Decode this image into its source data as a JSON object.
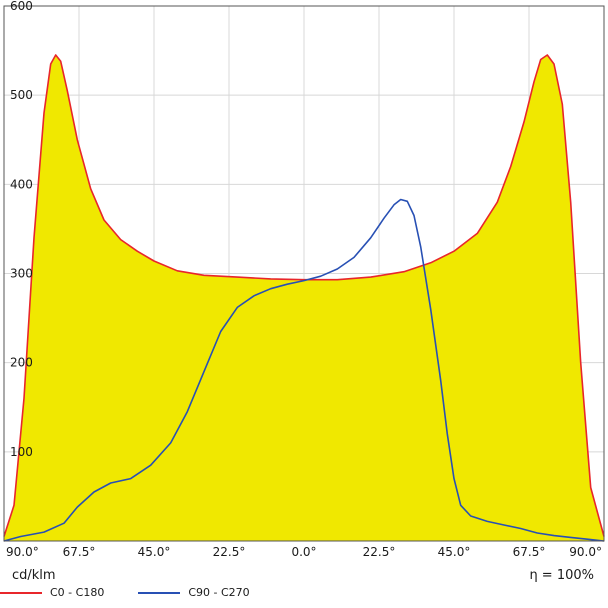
{
  "chart_data": {
    "type": "area",
    "x_tick_labels": [
      "90.0°",
      "67.5°",
      "45.0°",
      "22.5°",
      "0.0°",
      "22.5°",
      "45.0°",
      "67.5°",
      "90.0°"
    ],
    "x": [
      -90,
      -67.5,
      -45,
      -22.5,
      0,
      22.5,
      45,
      67.5,
      90
    ],
    "xlim": [
      -90,
      90
    ],
    "ylim": [
      0,
      600
    ],
    "y_ticks": [
      100,
      200,
      300,
      400,
      500,
      600
    ],
    "grid": true,
    "unit_label": "cd/klm",
    "efficiency_label": "η = 100%",
    "fill_color": "#f0e800",
    "series": [
      {
        "name": "C0 - C180",
        "color": "#e8262b",
        "filled": true,
        "points": [
          [
            -90,
            5
          ],
          [
            -87,
            40
          ],
          [
            -84,
            160
          ],
          [
            -81,
            340
          ],
          [
            -78,
            480
          ],
          [
            -76,
            535
          ],
          [
            -74.5,
            545
          ],
          [
            -73,
            538
          ],
          [
            -71,
            505
          ],
          [
            -68,
            450
          ],
          [
            -64,
            395
          ],
          [
            -60,
            360
          ],
          [
            -55,
            338
          ],
          [
            -50,
            325
          ],
          [
            -45,
            314
          ],
          [
            -38,
            303
          ],
          [
            -30,
            298
          ],
          [
            -20,
            296
          ],
          [
            -10,
            294
          ],
          [
            0,
            293
          ],
          [
            10,
            293
          ],
          [
            20,
            296
          ],
          [
            30,
            302
          ],
          [
            38,
            312
          ],
          [
            45,
            325
          ],
          [
            52,
            345
          ],
          [
            58,
            380
          ],
          [
            62,
            420
          ],
          [
            66,
            470
          ],
          [
            69,
            515
          ],
          [
            71,
            540
          ],
          [
            73,
            545
          ],
          [
            75,
            535
          ],
          [
            77.5,
            490
          ],
          [
            80,
            380
          ],
          [
            83,
            200
          ],
          [
            86,
            60
          ],
          [
            90,
            5
          ]
        ]
      },
      {
        "name": "C90 - C270",
        "color": "#2850b4",
        "filled": false,
        "points": [
          [
            -90,
            0
          ],
          [
            -85,
            5
          ],
          [
            -78,
            10
          ],
          [
            -72,
            20
          ],
          [
            -68,
            38
          ],
          [
            -63,
            55
          ],
          [
            -58,
            65
          ],
          [
            -52,
            70
          ],
          [
            -46,
            85
          ],
          [
            -40,
            110
          ],
          [
            -35,
            145
          ],
          [
            -30,
            190
          ],
          [
            -25,
            235
          ],
          [
            -20,
            262
          ],
          [
            -15,
            275
          ],
          [
            -10,
            283
          ],
          [
            -5,
            288
          ],
          [
            0,
            292
          ],
          [
            5,
            297
          ],
          [
            10,
            305
          ],
          [
            15,
            318
          ],
          [
            20,
            340
          ],
          [
            24,
            362
          ],
          [
            27,
            377
          ],
          [
            29,
            383
          ],
          [
            31,
            381
          ],
          [
            33,
            365
          ],
          [
            35,
            330
          ],
          [
            38,
            260
          ],
          [
            41,
            180
          ],
          [
            43,
            120
          ],
          [
            45,
            70
          ],
          [
            47,
            40
          ],
          [
            50,
            28
          ],
          [
            55,
            22
          ],
          [
            60,
            18
          ],
          [
            65,
            14
          ],
          [
            70,
            9
          ],
          [
            75,
            6
          ],
          [
            80,
            4
          ],
          [
            85,
            2
          ],
          [
            90,
            0
          ]
        ]
      }
    ]
  }
}
